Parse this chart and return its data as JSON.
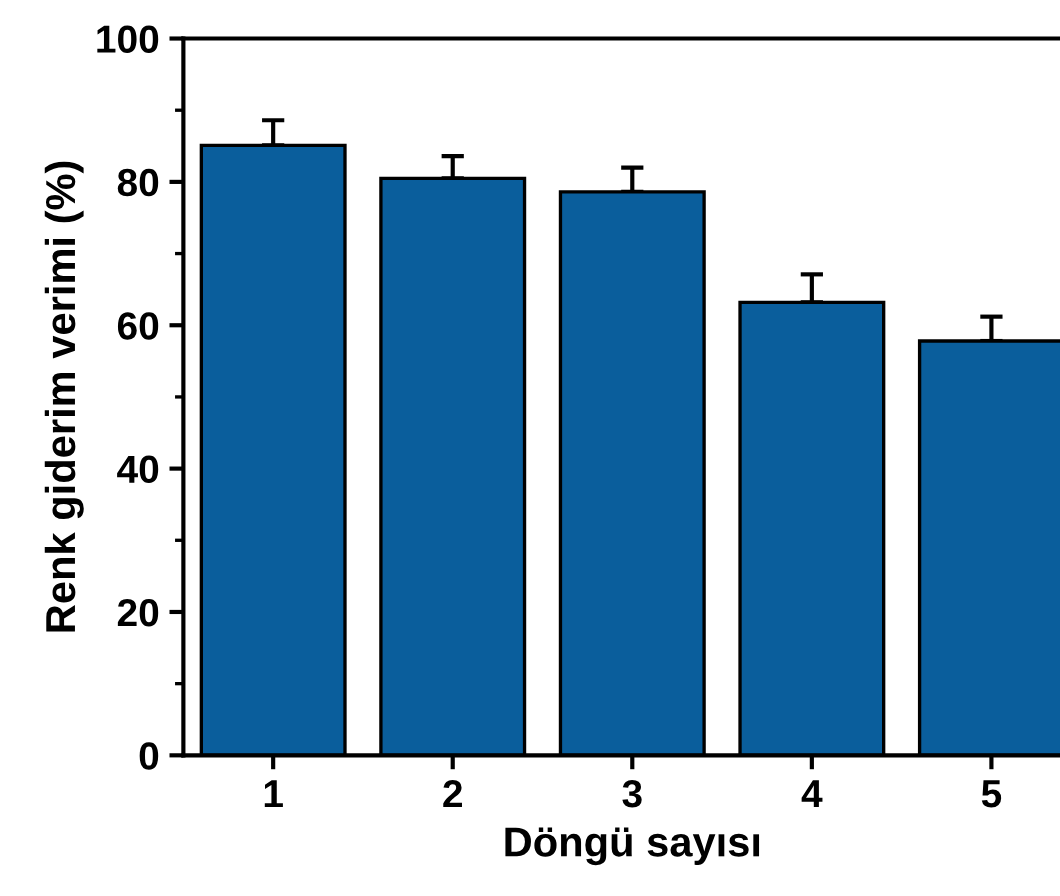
{
  "chart_data": {
    "type": "bar",
    "xlabel": "Döngü sayısı",
    "ylabel": "Renk giderim verimi (%)",
    "categories": [
      "1",
      "2",
      "3",
      "4",
      "5"
    ],
    "values": [
      85.1,
      80.5,
      78.6,
      63.2,
      57.8
    ],
    "errors": [
      [
        85.1,
        88.6
      ],
      [
        80.5,
        83.6
      ],
      [
        78.6,
        82.0
      ],
      [
        63.2,
        67.1
      ],
      [
        57.8,
        61.2
      ]
    ],
    "color": "#0a5e9c",
    "ylim": [
      0,
      100
    ],
    "yticks": [
      0,
      20,
      40,
      60,
      80,
      100
    ],
    "grid": false,
    "legend": false
  }
}
